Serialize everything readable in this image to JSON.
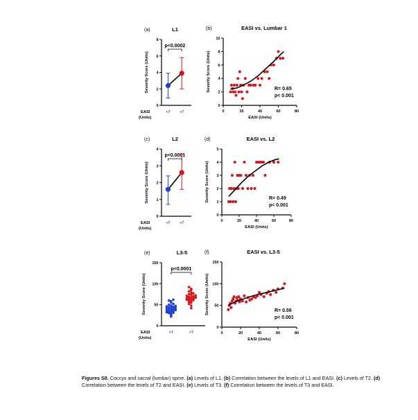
{
  "colors": {
    "low": "#1f3fd6",
    "high": "#d8141b",
    "line": "#000000"
  },
  "panels": [
    {
      "id": "a",
      "letter": "(a)",
      "title": "L1",
      "ylabel": "Severity Score (Units)",
      "xlabel_lines": [
        "EASI",
        "(Units)"
      ],
      "groups": [
        "<7",
        ">7"
      ],
      "ylim": [
        0,
        8
      ],
      "yticks": [
        "0",
        "2",
        "4",
        "6",
        "8"
      ],
      "pvalue": "p<0.0002",
      "low": {
        "mean": 2.4,
        "lo": 0.9,
        "hi": 3.9
      },
      "high": {
        "mean": 3.9,
        "lo": 2.0,
        "hi": 5.8
      }
    },
    {
      "id": "c",
      "letter": "(c)",
      "title": "L2",
      "ylabel": "Severity Score (Units)",
      "xlabel_lines": [
        "EASI",
        "(Units)"
      ],
      "groups": [
        "<7",
        ">7"
      ],
      "ylim": [
        0,
        4
      ],
      "yticks": [
        "0",
        "1",
        "2",
        "3",
        "4"
      ],
      "pvalue": "p<0.0001",
      "low": {
        "mean": 1.6,
        "lo": 0.7,
        "hi": 2.4
      },
      "high": {
        "mean": 2.6,
        "lo": 1.6,
        "hi": 3.7
      }
    },
    {
      "id": "e",
      "letter": "(e)",
      "title": "L3-5",
      "ylabel": "Severity Score (Units)",
      "xlabel_lines": [
        "EASI",
        "(Units)"
      ],
      "groups": [
        "<7",
        ">7"
      ],
      "ylim": [
        0,
        150
      ],
      "yticks": [
        "0",
        "50",
        "100",
        "150"
      ],
      "pvalue": "p<0.0001",
      "low_points": [
        22,
        25,
        28,
        30,
        31,
        32,
        33,
        34,
        35,
        36,
        37,
        38,
        39,
        40,
        41,
        42,
        43,
        44,
        45,
        46,
        47,
        48,
        50,
        52,
        55,
        58,
        60,
        62
      ],
      "high_points": [
        42,
        48,
        52,
        55,
        57,
        58,
        60,
        61,
        62,
        63,
        64,
        65,
        66,
        67,
        68,
        69,
        70,
        71,
        72,
        74,
        75,
        77,
        79,
        82,
        85,
        88,
        92
      ]
    },
    {
      "id": "b",
      "letter": "(b)",
      "title": "EASI vs. Lumbar 1",
      "ylabel": "Severity Score (Units)",
      "xlabel": "EASI (Units)",
      "xlim": [
        0,
        80
      ],
      "ylim": [
        0,
        10
      ],
      "xticks": [
        "0",
        "20",
        "40",
        "60",
        "80"
      ],
      "yticks": [
        "0",
        "2",
        "4",
        "6",
        "8",
        "10"
      ],
      "stats": [
        "R= 0.65",
        "p< 0.001"
      ],
      "points": [
        [
          8,
          2
        ],
        [
          9,
          3
        ],
        [
          10,
          2.5
        ],
        [
          11,
          2
        ],
        [
          12,
          3
        ],
        [
          13,
          2
        ],
        [
          14,
          1.5
        ],
        [
          15,
          3
        ],
        [
          16,
          4
        ],
        [
          17,
          2
        ],
        [
          18,
          5
        ],
        [
          19,
          3
        ],
        [
          20,
          2
        ],
        [
          21,
          1
        ],
        [
          22,
          3
        ],
        [
          24,
          4
        ],
        [
          26,
          2
        ],
        [
          28,
          3
        ],
        [
          30,
          3
        ],
        [
          33,
          3
        ],
        [
          35,
          3
        ],
        [
          38,
          4
        ],
        [
          40,
          3
        ],
        [
          42,
          4
        ],
        [
          45,
          5
        ],
        [
          48,
          5
        ],
        [
          50,
          4
        ],
        [
          52,
          6
        ],
        [
          55,
          6
        ],
        [
          58,
          7
        ],
        [
          60,
          8
        ],
        [
          62,
          7
        ],
        [
          65,
          7
        ]
      ],
      "curve": [
        [
          8,
          2.4
        ],
        [
          15,
          2.6
        ],
        [
          22,
          3.0
        ],
        [
          30,
          3.6
        ],
        [
          38,
          4.4
        ],
        [
          46,
          5.4
        ],
        [
          54,
          6.4
        ],
        [
          62,
          7.5
        ],
        [
          66,
          8.0
        ]
      ]
    },
    {
      "id": "d",
      "letter": "(d)",
      "title": "EASI vs. L2",
      "ylabel": "Severity Score (Units)",
      "xlabel": "EASI (Units)",
      "xlim": [
        0,
        80
      ],
      "ylim": [
        0,
        5
      ],
      "xticks": [
        "0",
        "20",
        "40",
        "60",
        "80"
      ],
      "yticks": [
        "0",
        "1",
        "2",
        "3",
        "4",
        "5"
      ],
      "stats": [
        "R= 0.49",
        "p< 0.001"
      ],
      "points": [
        [
          8,
          1
        ],
        [
          9,
          2
        ],
        [
          10,
          1
        ],
        [
          11,
          2
        ],
        [
          12,
          3
        ],
        [
          13,
          1
        ],
        [
          14,
          2
        ],
        [
          15,
          4
        ],
        [
          16,
          1
        ],
        [
          17,
          2
        ],
        [
          18,
          3
        ],
        [
          19,
          2
        ],
        [
          20,
          3
        ],
        [
          22,
          3
        ],
        [
          24,
          2
        ],
        [
          26,
          4
        ],
        [
          28,
          3
        ],
        [
          30,
          2
        ],
        [
          32,
          3
        ],
        [
          34,
          2
        ],
        [
          36,
          3
        ],
        [
          38,
          2
        ],
        [
          40,
          4
        ],
        [
          42,
          4
        ],
        [
          44,
          4
        ],
        [
          46,
          4
        ],
        [
          48,
          4
        ],
        [
          50,
          3
        ],
        [
          55,
          4
        ],
        [
          60,
          4
        ],
        [
          65,
          4
        ]
      ],
      "curve": [
        [
          8,
          1.4
        ],
        [
          15,
          1.9
        ],
        [
          22,
          2.4
        ],
        [
          30,
          2.9
        ],
        [
          38,
          3.3
        ],
        [
          46,
          3.7
        ],
        [
          54,
          4.0
        ],
        [
          62,
          4.2
        ],
        [
          66,
          4.25
        ]
      ]
    },
    {
      "id": "f",
      "letter": "(f)",
      "title": "EASI vs. L3-5",
      "ylabel": "Severity Score (Units)",
      "xlabel": "EASI (Units)",
      "xlim": [
        0,
        80
      ],
      "ylim": [
        0,
        150
      ],
      "xticks": [
        "0",
        "20",
        "40",
        "60",
        "80"
      ],
      "yticks": [
        "0",
        "50",
        "100",
        "150"
      ],
      "stats": [
        "R= 0.56",
        "p< 0.001"
      ],
      "points": [
        [
          7,
          40
        ],
        [
          8,
          50
        ],
        [
          9,
          55
        ],
        [
          10,
          45
        ],
        [
          11,
          60
        ],
        [
          12,
          65
        ],
        [
          13,
          70
        ],
        [
          14,
          55
        ],
        [
          15,
          60
        ],
        [
          16,
          68
        ],
        [
          17,
          62
        ],
        [
          18,
          70
        ],
        [
          19,
          58
        ],
        [
          20,
          65
        ],
        [
          22,
          60
        ],
        [
          24,
          72
        ],
        [
          26,
          58
        ],
        [
          28,
          68
        ],
        [
          30,
          62
        ],
        [
          32,
          65
        ],
        [
          34,
          70
        ],
        [
          36,
          68
        ],
        [
          38,
          72
        ],
        [
          40,
          80
        ],
        [
          42,
          75
        ],
        [
          45,
          70
        ],
        [
          48,
          78
        ],
        [
          50,
          82
        ],
        [
          52,
          75
        ],
        [
          55,
          85
        ],
        [
          58,
          80
        ],
        [
          60,
          88
        ],
        [
          65,
          90
        ],
        [
          67,
          100
        ]
      ],
      "curve": [
        [
          7,
          50
        ],
        [
          14,
          58
        ],
        [
          22,
          64
        ],
        [
          30,
          70
        ],
        [
          38,
          75
        ],
        [
          46,
          79
        ],
        [
          54,
          83
        ],
        [
          62,
          87
        ],
        [
          67,
          90
        ]
      ]
    }
  ],
  "caption": {
    "label": "Figures S8.",
    "text1": " Coccyx and sacral (lumbar) spine. ",
    "a": "(a)",
    "t_a": " Levels of L1. ",
    "b": "(b)",
    "t_b": " Correlation between the levels of L1 and EASI. ",
    "c": "(c)",
    "t_c": " Levels of T2. ",
    "d": "(d)",
    "t_d": " Correlation between the levels of T2 and EASI. ",
    "e": "(e)",
    "t_e": " Levels of T3. ",
    "f": "(f)",
    "t_f": " Correlation between the levels of T3 and EASI."
  }
}
